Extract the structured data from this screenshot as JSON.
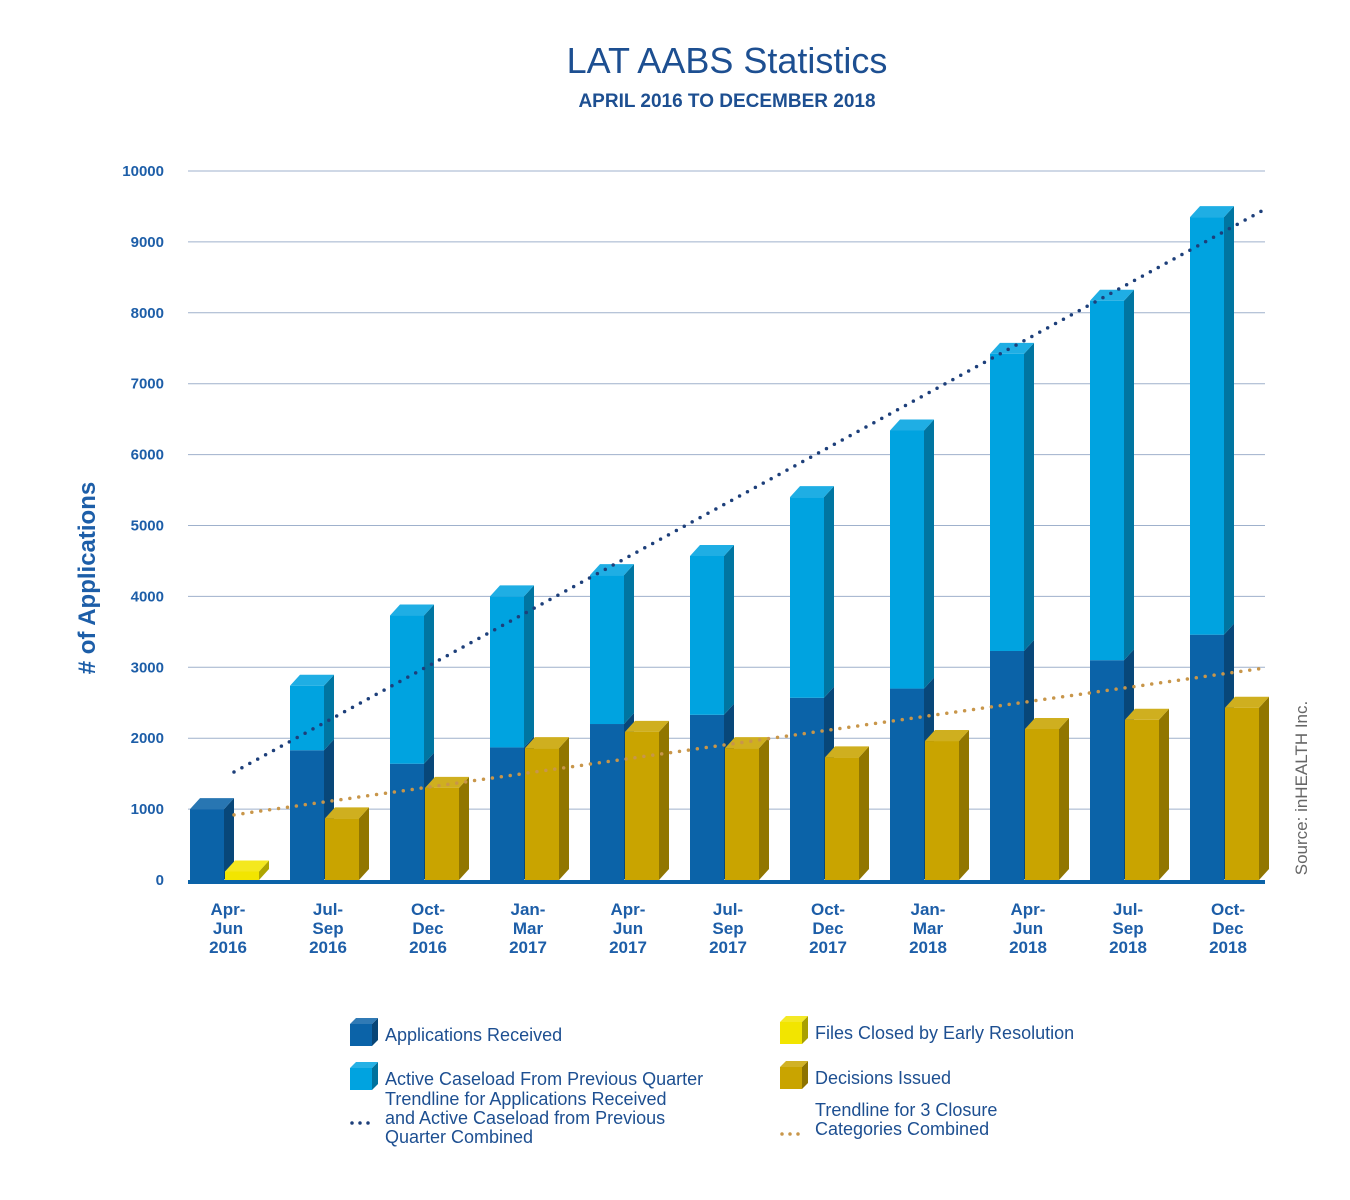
{
  "chart_data": {
    "type": "bar",
    "title": "LAT AABS Statistics",
    "subtitle": "APRIL 2016 TO DECEMBER 2018",
    "ylabel": "# of Applications",
    "source": "Source: inHEALTH Inc.",
    "ylim": [
      0,
      10000
    ],
    "yticks": [
      0,
      1000,
      2000,
      3000,
      4000,
      5000,
      6000,
      7000,
      8000,
      9000,
      10000
    ],
    "grid": true,
    "categories": [
      [
        "Apr-",
        "Jun",
        "2016"
      ],
      [
        "Jul-",
        "Sep",
        "2016"
      ],
      [
        "Oct-",
        "Dec",
        "2016"
      ],
      [
        "Jan-",
        "Mar",
        "2017"
      ],
      [
        "Apr-",
        "Jun",
        "2017"
      ],
      [
        "Jul-",
        "Sep",
        "2017"
      ],
      [
        "Oct-",
        "Dec",
        "2017"
      ],
      [
        "Jan-",
        "Mar",
        "2018"
      ],
      [
        "Apr-",
        "Jun",
        "2018"
      ],
      [
        "Jul-",
        "Sep",
        "2018"
      ],
      [
        "Oct-",
        "Dec",
        "2018"
      ]
    ],
    "series": [
      {
        "name": "Applications Received",
        "color": "#0b63a8",
        "stack": "left",
        "values": [
          1000,
          1830,
          1640,
          1870,
          2200,
          2330,
          2570,
          2700,
          3230,
          3100,
          3460
        ]
      },
      {
        "name": "Active Caseload From Previous Quarter",
        "color": "#00a3e0",
        "stack": "left",
        "values": [
          0,
          910,
          2090,
          2130,
          2100,
          2240,
          2830,
          3640,
          4190,
          5070,
          5890
        ]
      },
      {
        "name": "Files Closed by Early Resolution",
        "color": "#f2e500",
        "stack": "right",
        "values": [
          120,
          0,
          0,
          0,
          0,
          0,
          0,
          0,
          0,
          0,
          0
        ]
      },
      {
        "name": "Decisions Issued",
        "color": "#c9a400",
        "stack": "right",
        "values": [
          0,
          870,
          1300,
          1860,
          2090,
          1860,
          1730,
          1960,
          2130,
          2260,
          2430
        ]
      }
    ],
    "trendlines": [
      {
        "name": "Trendline for Applications Received and Active Caseload from Previous Quarter Combined",
        "color": "#1d3f7a",
        "start": 1450,
        "end": 9150
      },
      {
        "name": "Trendline for 3 Closure Categories Combined",
        "color": "#c8964a",
        "start": 900,
        "end": 2910
      }
    ],
    "legend_position": "bottom",
    "legend": [
      {
        "label_lines": [
          "Applications Received"
        ],
        "kind": "box",
        "color": "#0b63a8"
      },
      {
        "label_lines": [
          "Files Closed by Early Resolution"
        ],
        "kind": "box",
        "color": "#f2e500"
      },
      {
        "label_lines": [
          "Active Caseload From Previous Quarter"
        ],
        "kind": "box",
        "color": "#00a3e0"
      },
      {
        "label_lines": [
          "Decisions Issued"
        ],
        "kind": "box",
        "color": "#c9a400"
      },
      {
        "label_lines": [
          "Trendline for Applications Received",
          "and Active Caseload from Previous",
          "Quarter Combined"
        ],
        "kind": "dots",
        "color": "#1d3f7a"
      },
      {
        "label_lines": [
          "Trendline for 3 Closure",
          "Categories Combined"
        ],
        "kind": "dots",
        "color": "#c8964a"
      }
    ]
  }
}
